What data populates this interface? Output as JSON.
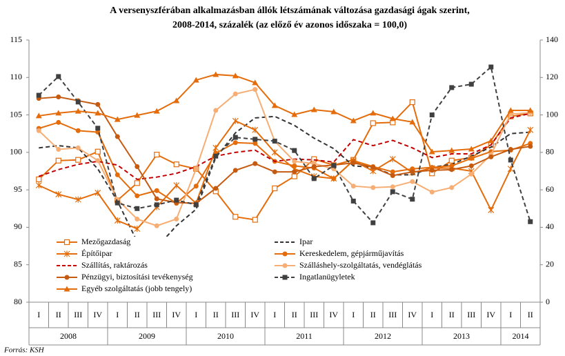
{
  "chart_data": {
    "type": "line",
    "title": "A versenyszférában alkalmazásban állók létszámának változása gazdasági ágak szerint,",
    "subtitle": "2008-2014, százalék (az előző év azonos időszaka = 100,0)",
    "source": "Forrás: KSH",
    "categories": [
      "I",
      "II",
      "III",
      "IV",
      "I",
      "II",
      "III",
      "IV",
      "I",
      "II",
      "III",
      "IV",
      "I",
      "II",
      "III",
      "IV",
      "I",
      "II",
      "III",
      "IV",
      "I",
      "II",
      "III",
      "IV",
      "I",
      "II"
    ],
    "year_groups": [
      {
        "label": "2008",
        "span": 4
      },
      {
        "label": "2009",
        "span": 4
      },
      {
        "label": "2010",
        "span": 4
      },
      {
        "label": "2011",
        "span": 4
      },
      {
        "label": "2012",
        "span": 4
      },
      {
        "label": "2013",
        "span": 4
      },
      {
        "label": "2014",
        "span": 2
      }
    ],
    "ylim": [
      80,
      115
    ],
    "yticks": [
      80,
      85,
      90,
      95,
      100,
      105,
      110,
      115
    ],
    "y2lim": [
      0,
      140
    ],
    "y2ticks": [
      0,
      20,
      40,
      60,
      80,
      100,
      120,
      140
    ],
    "grid": false,
    "series": [
      {
        "name": "Mezőgazdaság",
        "color": "#e46c0a",
        "marker": "square-open",
        "dash": false,
        "values": [
          96.4,
          98.9,
          99.0,
          100.1,
          93.6,
          95.9,
          99.7,
          98.4,
          97.8,
          94.8,
          91.4,
          91.0,
          95.2,
          96.8,
          99.1,
          98.3,
          99.0,
          103.9,
          104.0,
          106.7,
          97.2,
          98.9,
          99.3,
          101.0,
          104.8,
          105.2
        ]
      },
      {
        "name": "Ipar",
        "color": "#333333",
        "marker": "none",
        "dash": true,
        "values": [
          100.6,
          100.9,
          100.6,
          97.8,
          93.5,
          88.1,
          87.3,
          90.2,
          92.4,
          99.3,
          102.6,
          104.6,
          104.8,
          103.6,
          101.9,
          100.5,
          98.2,
          98.0,
          97.0,
          97.0,
          98.0,
          98.4,
          99.5,
          100.7,
          102.5,
          102.7
        ]
      },
      {
        "name": "Építőipar",
        "color": "#e46c0a",
        "marker": "asterisk",
        "dash": false,
        "values": [
          95.6,
          94.4,
          93.7,
          94.6,
          90.9,
          89.8,
          92.7,
          95.6,
          93.2,
          100.6,
          104.2,
          103.0,
          100.0,
          97.8,
          96.8,
          96.5,
          98.9,
          97.5,
          99.1,
          97.3,
          97.9,
          97.9,
          97.5,
          92.3,
          97.8,
          103.0
        ]
      },
      {
        "name": "Kereskedelem, gépjárműjavítás",
        "color": "#e46c0a",
        "marker": "circle",
        "dash": false,
        "values": [
          103.2,
          104.0,
          102.9,
          102.7,
          97.0,
          94.2,
          94.9,
          93.2,
          95.5,
          99.9,
          101.3,
          101.2,
          98.8,
          98.2,
          97.9,
          96.5,
          98.9,
          98.1,
          97.4,
          97.8,
          98.0,
          98.2,
          99.2,
          100.1,
          100.3,
          101.2
        ]
      },
      {
        "name": "Szállítás, raktározás",
        "color": "#c00000",
        "marker": "none",
        "dash": true,
        "values": [
          96.8,
          97.7,
          98.4,
          98.8,
          98.3,
          96.4,
          96.7,
          97.2,
          98.1,
          99.5,
          100.0,
          100.3,
          98.8,
          99.1,
          99.0,
          98.7,
          101.7,
          100.9,
          101.6,
          100.6,
          99.3,
          99.8,
          99.8,
          101.0,
          104.6,
          105.2
        ]
      },
      {
        "name": "Szálláshely-szolgáltatás, vendéglátás",
        "color": "#f7ae74",
        "marker": "circle",
        "dash": false,
        "values": [
          102.9,
          100.4,
          100.6,
          98.9,
          93.7,
          91.1,
          90.2,
          91.1,
          97.8,
          105.6,
          107.8,
          108.4,
          101.5,
          98.8,
          98.5,
          97.8,
          95.5,
          95.3,
          95.4,
          96.1,
          94.7,
          95.3,
          97.1,
          99.7,
          105.1,
          105.3
        ]
      },
      {
        "name": "Pénzügyi, biztosítási tevékenység",
        "color": "#c55a11",
        "marker": "circle",
        "dash": false,
        "values": [
          107.2,
          107.4,
          106.9,
          106.4,
          102.1,
          98.1,
          93.8,
          93.3,
          93.2,
          95.2,
          97.6,
          98.5,
          97.4,
          97.4,
          98.1,
          98.3,
          98.6,
          98.0,
          96.9,
          97.4,
          97.6,
          97.7,
          98.2,
          99.4,
          100.4,
          100.8
        ]
      },
      {
        "name": "Ingatlanügyletek",
        "color": "#404040",
        "marker": "square",
        "dash": true,
        "axis": "y2",
        "values": [
          110.5,
          120.5,
          106.9,
          92.9,
          53,
          50,
          52,
          54.5,
          52,
          78,
          88,
          87,
          86,
          81,
          66,
          73,
          54,
          42.4,
          59,
          55,
          100,
          114.6,
          116.4,
          125.6,
          75.9,
          43
        ]
      },
      {
        "name": "Egyéb szolgáltatás (jobb tengely)",
        "color": "#e46c0a",
        "marker": "triangle",
        "dash": false,
        "axis": "y2",
        "values": [
          99.5,
          101,
          102,
          101,
          97.6,
          99.8,
          102,
          107.6,
          118.6,
          121.6,
          120.9,
          117.2,
          105,
          100.2,
          102.8,
          101.7,
          96.9,
          101,
          98,
          96.2,
          80.3,
          81,
          81.8,
          86.2,
          102.4,
          102.4
        ]
      }
    ]
  }
}
